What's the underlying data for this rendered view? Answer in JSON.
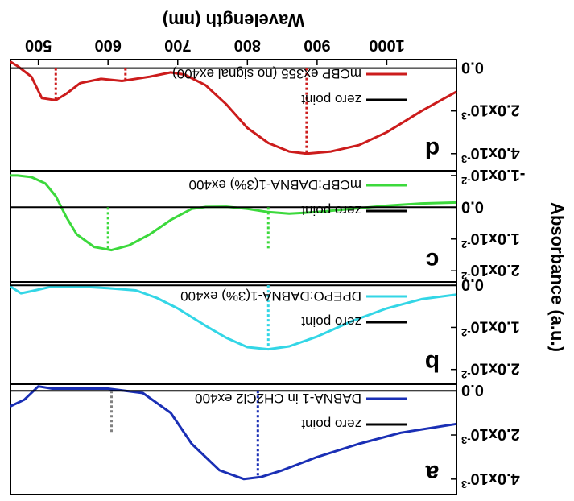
{
  "chart_data": [
    {
      "type": "line",
      "panel_letter": "a",
      "x_range": [
        1100,
        460
      ],
      "y_range": [
        -0.0003,
        0.0047
      ],
      "y_ticks": [
        {
          "value": 0.0,
          "label": "0.0"
        },
        {
          "value": 0.002,
          "label": "2.0x10-3",
          "base": "2.0x10",
          "exp": "-3"
        },
        {
          "value": 0.004,
          "label": "4.0x10-3",
          "base": "4.0x10",
          "exp": "-3"
        }
      ],
      "legend": [
        {
          "name": "DABNA-1 in CH2Cl2 ex400",
          "color": "#1a2fb5"
        },
        {
          "name": "zero point",
          "color": "#000000"
        }
      ],
      "series": [
        {
          "name": "DABNA-1 in CH2Cl2 ex400",
          "color": "#1a2fb5",
          "x": [
            1100,
            1020,
            960,
            900,
            850,
            820,
            795,
            760,
            720,
            690,
            650,
            600,
            560,
            520,
            500,
            480,
            460
          ],
          "y": [
            0.0015,
            0.0019,
            0.0024,
            0.003,
            0.0036,
            0.0039,
            0.004,
            0.0036,
            0.0024,
            0.001,
            0.0001,
            -0.0001,
            -0.0001,
            -0.0001,
            -0.0002,
            0.0004,
            0.0007
          ]
        },
        {
          "name": "zero point",
          "color": "#000000",
          "x": [
            1100,
            460
          ],
          "y": [
            0.0,
            0.0
          ]
        }
      ],
      "markers": [
        {
          "x": 815,
          "y_top": 0.0039,
          "color": "#1a2fb5"
        },
        {
          "x": 605,
          "y_top": 0.0019,
          "color": "#808080"
        }
      ]
    },
    {
      "type": "line",
      "panel_letter": "b",
      "x_range": [
        1100,
        460
      ],
      "y_range": [
        -0.0008,
        0.0235
      ],
      "y_ticks": [
        {
          "value": 0.0,
          "label": "0.0"
        },
        {
          "value": 0.01,
          "label": "1.0x10-2",
          "base": "1.0x10",
          "exp": "-2"
        },
        {
          "value": 0.02,
          "label": "2.0x10-2",
          "base": "2.0x10",
          "exp": "-2"
        }
      ],
      "legend": [
        {
          "name": "DPEPO:DABNA-1(3%) ex400",
          "color": "#33d6e6"
        },
        {
          "name": "zero point",
          "color": "#000000"
        }
      ],
      "series": [
        {
          "name": "DPEPO:DABNA-1(3%) ex400",
          "color": "#33d6e6",
          "x": [
            1100,
            1050,
            1000,
            950,
            900,
            860,
            830,
            800,
            770,
            740,
            700,
            670,
            640,
            600,
            560,
            520,
            490,
            475,
            460
          ],
          "y": [
            0.0022,
            0.0033,
            0.0055,
            0.0085,
            0.0122,
            0.0145,
            0.0152,
            0.0147,
            0.0125,
            0.0096,
            0.0055,
            0.003,
            0.0012,
            0.0007,
            0.0003,
            0.0003,
            0.0014,
            0.0019,
            0.0003
          ]
        },
        {
          "name": "zero point",
          "color": "#000000",
          "x": [
            1100,
            460
          ],
          "y": [
            0.0,
            0.0
          ]
        }
      ],
      "markers": [
        {
          "x": 830,
          "y_top": 0.0152,
          "color": "#33d6e6"
        }
      ]
    },
    {
      "type": "line",
      "panel_letter": "c",
      "x_range": [
        1100,
        460
      ],
      "y_range": [
        -0.0115,
        0.0235
      ],
      "y_ticks": [
        {
          "value": -0.01,
          "label": "-1.0x10-2",
          "base": "-1.0x10",
          "exp": "-2"
        },
        {
          "value": 0.0,
          "label": "0.0"
        },
        {
          "value": 0.01,
          "label": "1.0x10-2",
          "base": "1.0x10",
          "exp": "-2"
        },
        {
          "value": 0.02,
          "label": "2.0x10-2",
          "base": "2.0x10",
          "exp": "-2"
        }
      ],
      "legend": [
        {
          "name": "mCBP:DABNA-1(3%) ex400",
          "color": "#3cd93c"
        },
        {
          "name": "zero point",
          "color": "#000000"
        }
      ],
      "series": [
        {
          "name": "mCBP:DABNA-1(3%) ex400",
          "color": "#3cd93c",
          "x": [
            1100,
            1050,
            1000,
            950,
            900,
            860,
            830,
            800,
            770,
            740,
            720,
            690,
            660,
            630,
            605,
            580,
            555,
            540,
            525,
            510,
            490,
            470,
            460
          ],
          "y": [
            -0.0015,
            -0.0012,
            -0.0005,
            0.0005,
            0.0015,
            0.002,
            0.0015,
            0.0005,
            -0.0002,
            -0.0001,
            0.0005,
            0.004,
            0.0085,
            0.012,
            0.0135,
            0.0125,
            0.0085,
            0.003,
            -0.0035,
            -0.0075,
            -0.0095,
            -0.01,
            -0.01
          ]
        },
        {
          "name": "zero point",
          "color": "#000000",
          "x": [
            1100,
            460
          ],
          "y": [
            0.0,
            0.0
          ]
        }
      ],
      "markers": [
        {
          "x": 830,
          "y_top": 0.0135,
          "color": "#3cd93c"
        },
        {
          "x": 600,
          "y_top": 0.0135,
          "color": "#3cd93c"
        }
      ]
    },
    {
      "type": "line",
      "panel_letter": "d",
      "x_range": [
        1100,
        460
      ],
      "y_range": [
        -0.0004,
        0.0048
      ],
      "y_ticks": [
        {
          "value": 0.0,
          "label": "0.0"
        },
        {
          "value": 0.002,
          "label": "2.0x10-3",
          "base": "2.0x10",
          "exp": "-3"
        },
        {
          "value": 0.004,
          "label": "4.0x10-3",
          "base": "4.0x10",
          "exp": "-3"
        }
      ],
      "legend": [
        {
          "name": "mCBP ex355 (no signal ex400)",
          "color": "#cc1c1c"
        },
        {
          "name": "zero point",
          "color": "#000000"
        }
      ],
      "series": [
        {
          "name": "mCBP ex355 (no signal ex400)",
          "color": "#cc1c1c",
          "x": [
            1100,
            1050,
            1000,
            960,
            920,
            885,
            860,
            830,
            800,
            770,
            740,
            710,
            690,
            660,
            620,
            590,
            560,
            540,
            525,
            505,
            490,
            470,
            460
          ],
          "y": [
            0.0011,
            0.002,
            0.003,
            0.0036,
            0.0039,
            0.004,
            0.0039,
            0.0035,
            0.0028,
            0.0017,
            0.0008,
            0.0003,
            0.0002,
            0.0004,
            0.0006,
            0.0005,
            0.0007,
            0.0012,
            0.0015,
            0.0014,
            0.0004,
            -0.0001,
            -0.0003
          ]
        },
        {
          "name": "zero point",
          "color": "#000000",
          "x": [
            1100,
            460
          ],
          "y": [
            0.0,
            0.0
          ]
        }
      ],
      "markers": [
        {
          "x": 885,
          "y_top": 0.004,
          "color": "#cc1c1c"
        },
        {
          "x": 625,
          "y_top": 0.0006,
          "color": "#cc1c1c"
        },
        {
          "x": 525,
          "y_top": 0.0015,
          "color": "#cc1c1c"
        }
      ]
    }
  ],
  "x_ticks": [
    {
      "value": 1000,
      "label": "1000"
    },
    {
      "value": 900,
      "label": "900"
    },
    {
      "value": 800,
      "label": "800"
    },
    {
      "value": 700,
      "label": "700"
    },
    {
      "value": 600,
      "label": "600"
    },
    {
      "value": 500,
      "label": "500"
    }
  ],
  "xlabel": "Wavelength (nm)",
  "ylabel": "Absorbance (a.u.)"
}
